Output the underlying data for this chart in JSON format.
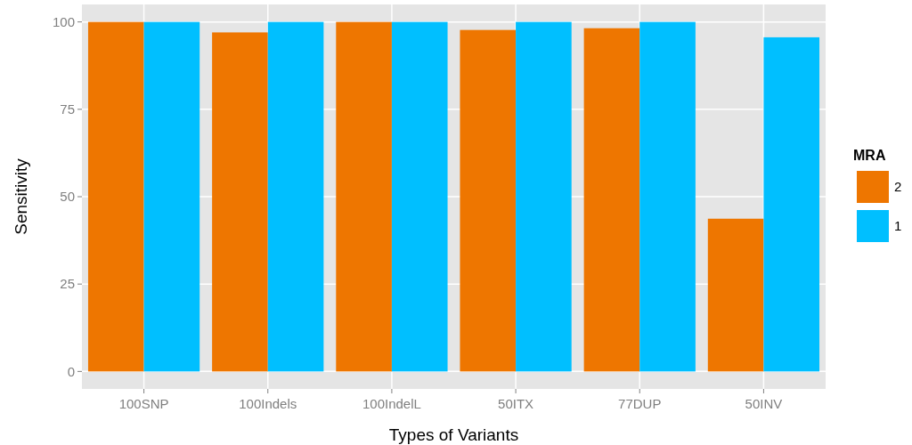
{
  "chart_data": {
    "type": "bar",
    "xlabel": "Types of Variants",
    "ylabel": "Sensitivity",
    "legend_title": "MRA",
    "categories": [
      "100SNP",
      "100Indels",
      "100IndelL",
      "50ITX",
      "77DUP",
      "50INV"
    ],
    "series": [
      {
        "name": "2",
        "color": "#ee7600",
        "values": [
          100,
          97,
          100,
          97.7,
          98.2,
          43.7
        ]
      },
      {
        "name": "1",
        "color": "#00bfff",
        "values": [
          100,
          100,
          100,
          100,
          100,
          95.6
        ]
      }
    ],
    "ylim": [
      -5,
      105
    ],
    "yticks": [
      0,
      25,
      50,
      75,
      100
    ],
    "grid": true,
    "legend": "right"
  }
}
